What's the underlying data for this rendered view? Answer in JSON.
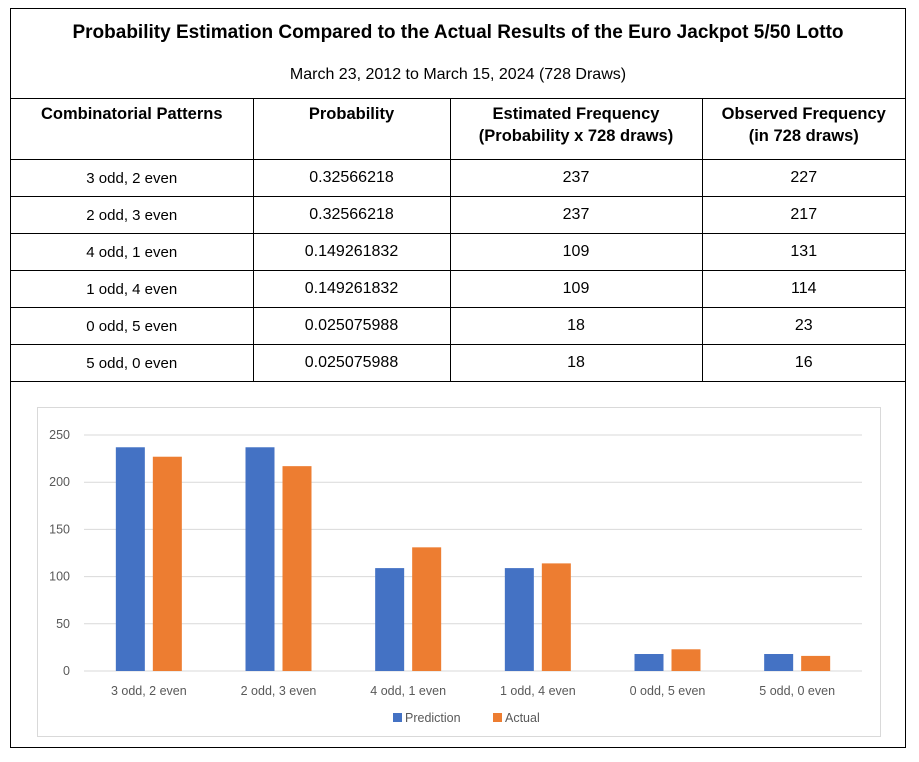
{
  "title": "Probability Estimation Compared to the Actual Results of the Euro Jackpot 5/50 Lotto",
  "subtitle": "March 23, 2012 to March 15, 2024 (728 Draws)",
  "table": {
    "headers": [
      [
        "Combinatorial Patterns"
      ],
      [
        "Probability"
      ],
      [
        "Estimated Frequency",
        "(Probability x 728 draws)"
      ],
      [
        "Observed Frequency",
        "(in 728 draws)"
      ]
    ],
    "rows": [
      [
        "3 odd, 2 even",
        "0.32566218",
        "237",
        "227"
      ],
      [
        "2 odd, 3 even",
        "0.32566218",
        "237",
        "217"
      ],
      [
        "4 odd, 1 even",
        "0.149261832",
        "109",
        "131"
      ],
      [
        "1 odd, 4 even",
        "0.149261832",
        "109",
        "114"
      ],
      [
        "0 odd, 5 even",
        "0.025075988",
        "18",
        "23"
      ],
      [
        "5 odd, 0 even",
        "0.025075988",
        "18",
        "16"
      ]
    ]
  },
  "chart_data": {
    "type": "bar",
    "title": "",
    "xlabel": "",
    "ylabel": "",
    "categories": [
      "3 odd, 2 even",
      "2 odd, 3 even",
      "4 odd, 1 even",
      "1 odd, 4 even",
      "0 odd, 5 even",
      "5 odd, 0 even"
    ],
    "series": [
      {
        "name": "Prediction",
        "values": [
          237,
          237,
          109,
          109,
          18,
          18
        ],
        "color": "#4472c4"
      },
      {
        "name": "Actual",
        "values": [
          227,
          217,
          131,
          114,
          23,
          16
        ],
        "color": "#ed7d31"
      }
    ],
    "ylim": [
      0,
      250
    ],
    "yticks": [
      0,
      50,
      100,
      150,
      200,
      250
    ],
    "grid": true,
    "legend": "bottom"
  },
  "colors": {
    "gridline": "#d9d9d9",
    "tick_text": "#595959"
  }
}
